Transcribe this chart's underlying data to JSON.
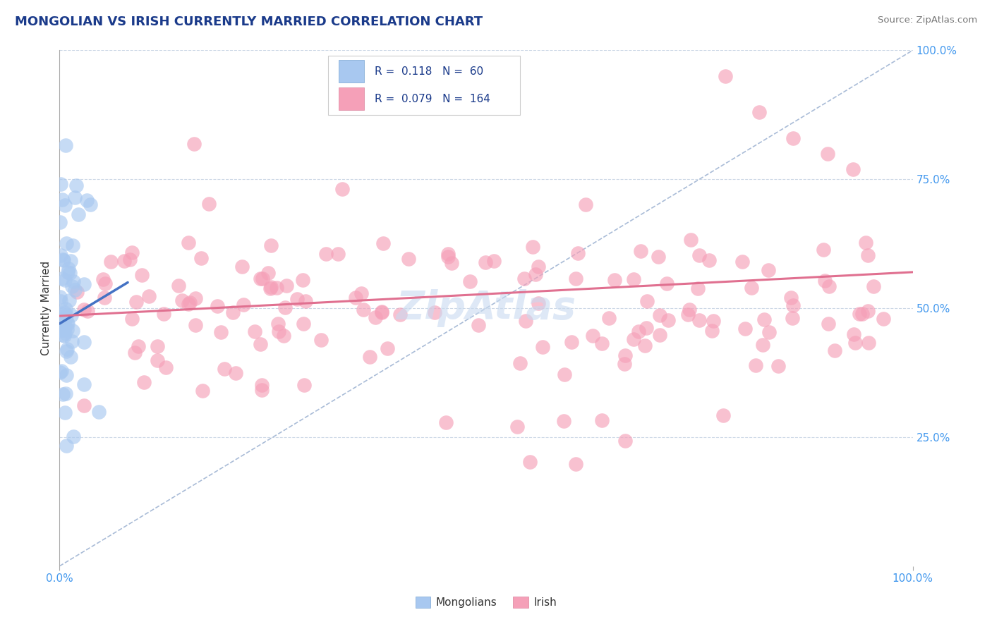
{
  "title": "MONGOLIAN VS IRISH CURRENTLY MARRIED CORRELATION CHART",
  "source": "Source: ZipAtlas.com",
  "ylabel": "Currently Married",
  "mongolian_R": 0.118,
  "mongolian_N": 60,
  "irish_R": 0.079,
  "irish_N": 164,
  "mongolian_color": "#a8c8f0",
  "irish_color": "#f5a0b8",
  "mongolian_line_color": "#4472c4",
  "irish_line_color": "#e07090",
  "diag_line_color": "#9ab0d0",
  "background_color": "#ffffff",
  "grid_color": "#c8d4e4",
  "title_color": "#1a3a8a",
  "right_axis_color": "#4499ee",
  "watermark_color": "#c8daf0",
  "legend_box_color": "#e8f0f8",
  "legend_text_color": "#1a3a8a"
}
